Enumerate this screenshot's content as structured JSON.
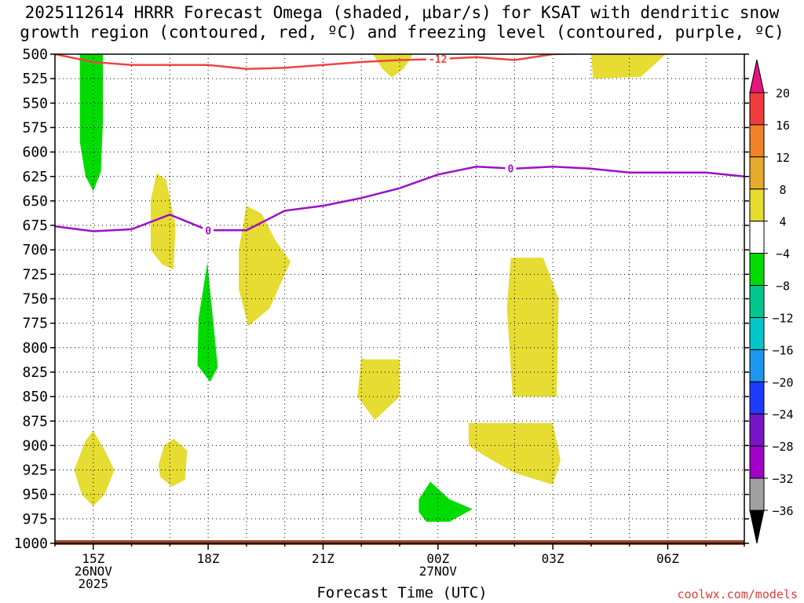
{
  "title": {
    "line1": "2025112614 HRRR Forecast Omega (shaded, μbar/s) for KSAT with dendritic snow",
    "line2": "growth region (contoured, red, ºC) and freezing level (contoured, purple, ºC)"
  },
  "xlabel": "Forecast Time (UTC)",
  "credit": "coolwx.com/models",
  "chart_data": {
    "type": "time-height cross section",
    "x_unit": "forecast hour",
    "xlim": [
      14,
      32
    ],
    "y_unit": "hPa",
    "ylim": [
      1000,
      500
    ],
    "yticks": [
      500,
      525,
      550,
      575,
      600,
      625,
      650,
      675,
      700,
      725,
      750,
      775,
      800,
      825,
      850,
      875,
      900,
      925,
      950,
      975,
      1000
    ],
    "xticks": [
      {
        "hour": 15,
        "label": "15Z",
        "sub1": "26NOV",
        "sub2": "2025"
      },
      {
        "hour": 18,
        "label": "18Z",
        "sub1": "",
        "sub2": ""
      },
      {
        "hour": 21,
        "label": "21Z",
        "sub1": "",
        "sub2": ""
      },
      {
        "hour": 24,
        "label": "00Z",
        "sub1": "27NOV",
        "sub2": ""
      },
      {
        "hour": 27,
        "label": "03Z",
        "sub1": "",
        "sub2": ""
      },
      {
        "hour": 30,
        "label": "06Z",
        "sub1": "",
        "sub2": ""
      }
    ],
    "grid": true,
    "colorbar": {
      "label_values": [
        20,
        16,
        12,
        8,
        4,
        -4,
        -8,
        -12,
        -16,
        -20,
        -24,
        -28,
        -32,
        -36
      ],
      "bands": [
        {
          "lo": 16,
          "hi": 20,
          "color": "#f03c3c"
        },
        {
          "lo": 12,
          "hi": 16,
          "color": "#f08228"
        },
        {
          "lo": 8,
          "hi": 12,
          "color": "#e6aa2d"
        },
        {
          "lo": 4,
          "hi": 8,
          "color": "#e6dc32"
        },
        {
          "lo": -4,
          "hi": 4,
          "color": "#ffffff"
        },
        {
          "lo": -8,
          "hi": -4,
          "color": "#00dc00"
        },
        {
          "lo": -12,
          "hi": -8,
          "color": "#00c88c"
        },
        {
          "lo": -16,
          "hi": -12,
          "color": "#00c8c8"
        },
        {
          "lo": -20,
          "hi": -16,
          "color": "#1e96f0"
        },
        {
          "lo": -24,
          "hi": -20,
          "color": "#1e3cff"
        },
        {
          "lo": -28,
          "hi": -24,
          "color": "#7814c8"
        },
        {
          "lo": -32,
          "hi": -28,
          "color": "#a000c8"
        },
        {
          "lo": -36,
          "hi": -32,
          "color": "#a0a0a0"
        }
      ],
      "top_arrow_color": "#e6147d",
      "bottom_arrow_color": "#000000"
    },
    "omega_regions": [
      {
        "color": "#00dc00",
        "points": [
          [
            14.65,
            500
          ],
          [
            15.25,
            500
          ],
          [
            15.25,
            570
          ],
          [
            15.2,
            620
          ],
          [
            15.0,
            640
          ],
          [
            14.8,
            625
          ],
          [
            14.65,
            590
          ]
        ]
      },
      {
        "color": "#00dc00",
        "points": [
          [
            17.98,
            713
          ],
          [
            18.15,
            780
          ],
          [
            18.25,
            820
          ],
          [
            18.05,
            835
          ],
          [
            17.72,
            818
          ],
          [
            17.75,
            770
          ]
        ]
      },
      {
        "color": "#00dc00",
        "points": [
          [
            23.5,
            955
          ],
          [
            23.8,
            937
          ],
          [
            24.3,
            955
          ],
          [
            24.9,
            965
          ],
          [
            24.3,
            978
          ],
          [
            23.7,
            978
          ],
          [
            23.5,
            968
          ]
        ]
      },
      {
        "color": "#e6dc32",
        "points": [
          [
            16.5,
            650
          ],
          [
            16.65,
            622
          ],
          [
            16.9,
            628
          ],
          [
            17.15,
            675
          ],
          [
            17.1,
            720
          ],
          [
            16.8,
            715
          ],
          [
            16.5,
            700
          ]
        ]
      },
      {
        "color": "#e6dc32",
        "points": [
          [
            18.8,
            700
          ],
          [
            19.0,
            655
          ],
          [
            19.4,
            663
          ],
          [
            19.75,
            690
          ],
          [
            20.15,
            712
          ],
          [
            19.6,
            760
          ],
          [
            19.05,
            778
          ],
          [
            18.8,
            740
          ]
        ]
      },
      {
        "color": "#e6dc32",
        "points": [
          [
            22.3,
            500
          ],
          [
            23.35,
            500
          ],
          [
            23.1,
            515
          ],
          [
            22.8,
            524
          ],
          [
            22.55,
            515
          ]
        ]
      },
      {
        "color": "#e6dc32",
        "points": [
          [
            28.0,
            500
          ],
          [
            29.95,
            500
          ],
          [
            29.3,
            523
          ],
          [
            28.05,
            525
          ]
        ]
      },
      {
        "color": "#e6dc32",
        "points": [
          [
            14.5,
            925
          ],
          [
            14.8,
            895
          ],
          [
            15.0,
            885
          ],
          [
            15.3,
            905
          ],
          [
            15.55,
            925
          ],
          [
            15.3,
            950
          ],
          [
            15.0,
            962
          ],
          [
            14.7,
            950
          ]
        ]
      },
      {
        "color": "#e6dc32",
        "points": [
          [
            16.7,
            920
          ],
          [
            16.85,
            900
          ],
          [
            17.1,
            893
          ],
          [
            17.45,
            905
          ],
          [
            17.4,
            935
          ],
          [
            17.05,
            942
          ],
          [
            16.75,
            932
          ]
        ]
      },
      {
        "color": "#e6dc32",
        "points": [
          [
            22.0,
            810
          ],
          [
            22.1,
            812
          ],
          [
            23.0,
            812
          ],
          [
            23.0,
            850
          ],
          [
            22.35,
            874
          ],
          [
            21.9,
            850
          ]
        ]
      },
      {
        "color": "#e6dc32",
        "points": [
          [
            25.9,
            708
          ],
          [
            26.75,
            708
          ],
          [
            27.15,
            750
          ],
          [
            27.1,
            850
          ],
          [
            25.95,
            850
          ],
          [
            25.8,
            760
          ]
        ]
      },
      {
        "color": "#e6dc32",
        "points": [
          [
            24.8,
            877
          ],
          [
            27.0,
            877
          ],
          [
            27.2,
            915
          ],
          [
            27.0,
            940
          ],
          [
            26.0,
            928
          ],
          [
            25.2,
            910
          ],
          [
            24.8,
            900
          ]
        ]
      }
    ],
    "dgz_contour": {
      "label": "-12",
      "label_x": 24.0,
      "color": "#ee4444",
      "points": [
        [
          14,
          500
        ],
        [
          15,
          508
        ],
        [
          16,
          511
        ],
        [
          17,
          511
        ],
        [
          18,
          511
        ],
        [
          19,
          515
        ],
        [
          20,
          514
        ],
        [
          21,
          511
        ],
        [
          22,
          508
        ],
        [
          23,
          506
        ],
        [
          24,
          505
        ],
        [
          25,
          503
        ],
        [
          26,
          506
        ],
        [
          27,
          500
        ],
        [
          28,
          499
        ]
      ]
    },
    "freezing_level": {
      "label": "0",
      "label_positions": [
        18.0,
        25.9
      ],
      "color": "#9a10c8",
      "points": [
        [
          14,
          676
        ],
        [
          15,
          681
        ],
        [
          16,
          679
        ],
        [
          17,
          664
        ],
        [
          18,
          680
        ],
        [
          19,
          680
        ],
        [
          20,
          660
        ],
        [
          21,
          655
        ],
        [
          22,
          647
        ],
        [
          23,
          637
        ],
        [
          24,
          623
        ],
        [
          25,
          615
        ],
        [
          26,
          617
        ],
        [
          27,
          615
        ],
        [
          28,
          617
        ],
        [
          29,
          621
        ],
        [
          30,
          621
        ],
        [
          31,
          621
        ],
        [
          32,
          625
        ]
      ]
    },
    "surface_strip_color": "#9b4a24"
  }
}
